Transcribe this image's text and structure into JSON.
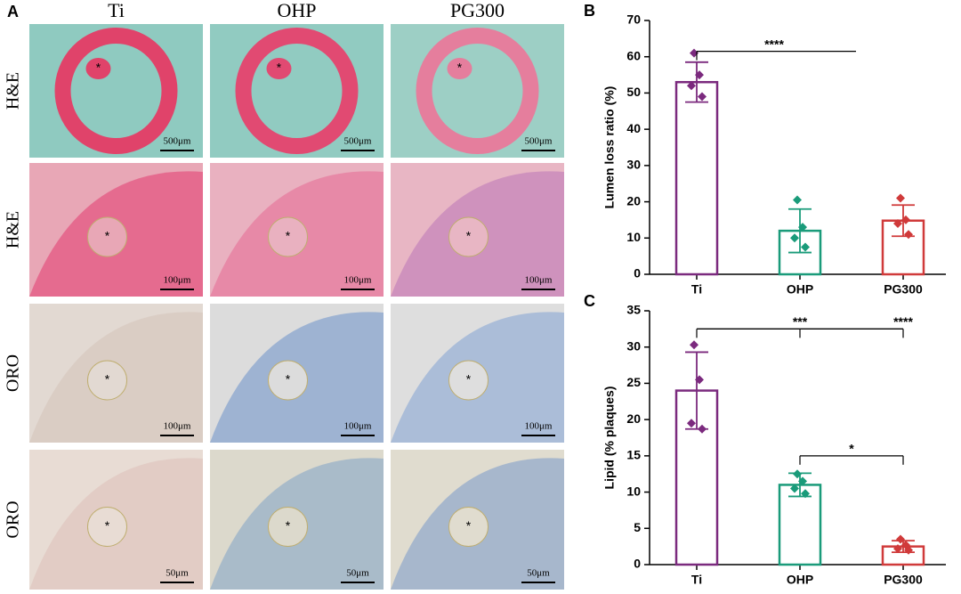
{
  "figure": {
    "panel_label": "A",
    "columns": [
      "Ti",
      "OHP",
      "PG300"
    ],
    "rows": [
      "H&E",
      "H&E",
      "ORO",
      "ORO"
    ],
    "lumen_marker": "*",
    "scale_bars": [
      [
        "500μm",
        "500μm",
        "500μm"
      ],
      [
        "100μm",
        "100μm",
        "100μm"
      ],
      [
        "100μm",
        "100μm",
        "100μm"
      ],
      [
        "50μm",
        "50μm",
        "50μm"
      ]
    ]
  },
  "chart_data": [
    {
      "type": "bar",
      "panel_label": "B",
      "ylabel": "Lumen loss ratio (%)",
      "categories": [
        "Ti",
        "OHP",
        "PG300"
      ],
      "values": [
        53,
        12,
        14.8
      ],
      "errors": [
        5.5,
        6,
        4.3
      ],
      "points": [
        [
          61,
          55,
          52,
          49
        ],
        [
          20.5,
          13,
          10,
          7.5
        ],
        [
          21,
          15,
          14,
          11
        ]
      ],
      "colors": [
        "#7b2a7e",
        "#1a9b7a",
        "#d03a3a"
      ],
      "ylim": [
        0,
        70
      ],
      "yticks": [
        0,
        10,
        20,
        30,
        40,
        50,
        60,
        70
      ],
      "significance": [
        {
          "label": "****"
        }
      ]
    },
    {
      "type": "bar",
      "panel_label": "C",
      "ylabel": "Lipid (% plaques)",
      "categories": [
        "Ti",
        "OHP",
        "PG300"
      ],
      "values": [
        24,
        11,
        2.5
      ],
      "errors": [
        5.3,
        1.6,
        0.8
      ],
      "points": [
        [
          30.3,
          25.5,
          19.5,
          18.7
        ],
        [
          12.5,
          11.5,
          10.5,
          9.8
        ],
        [
          3.5,
          2.7,
          2.2,
          2.0
        ]
      ],
      "colors": [
        "#7b2a7e",
        "#1a9b7a",
        "#d03a3a"
      ],
      "ylim": [
        0,
        35
      ],
      "yticks": [
        0,
        5,
        10,
        15,
        20,
        25,
        30,
        35
      ],
      "significance": [
        {
          "label": "***"
        },
        {
          "label": "****"
        },
        {
          "label": "*"
        }
      ]
    }
  ]
}
